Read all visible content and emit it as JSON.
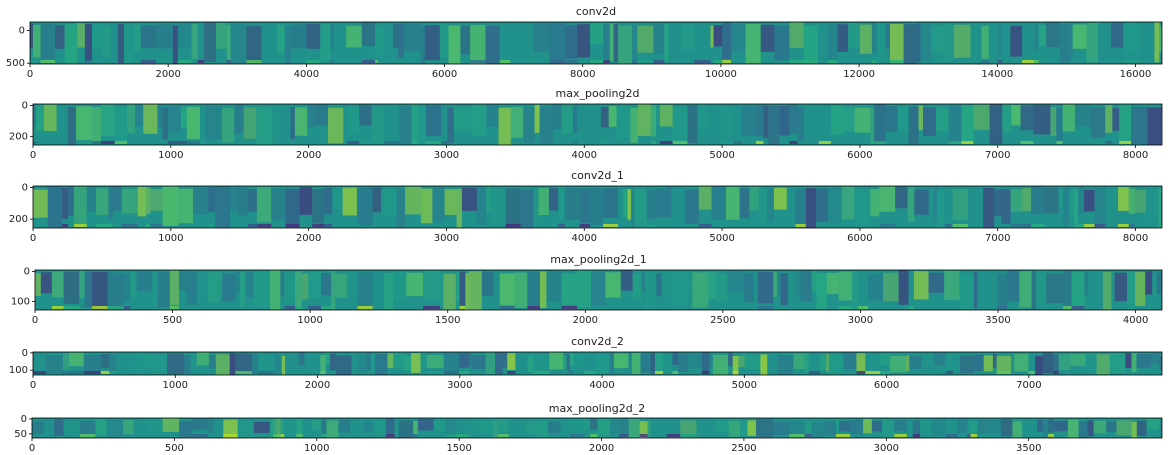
{
  "chart_data": [
    {
      "type": "image",
      "title": "conv2d",
      "xlim": [
        0,
        16384
      ],
      "ylim": [
        512,
        -128
      ],
      "xticks": [
        0,
        2000,
        4000,
        6000,
        8000,
        10000,
        12000,
        14000,
        16000
      ],
      "yticks": [
        0,
        500
      ]
    },
    {
      "type": "image",
      "title": "max_pooling2d",
      "xlim": [
        0,
        8192
      ],
      "ylim": [
        256,
        -10
      ],
      "xticks": [
        0,
        1000,
        2000,
        3000,
        4000,
        5000,
        6000,
        7000,
        8000
      ],
      "yticks": [
        0,
        200
      ]
    },
    {
      "type": "image",
      "title": "conv2d_1",
      "xlim": [
        0,
        8192
      ],
      "ylim": [
        256,
        -10
      ],
      "xticks": [
        0,
        1000,
        2000,
        3000,
        4000,
        5000,
        6000,
        7000,
        8000
      ],
      "yticks": [
        0,
        200
      ]
    },
    {
      "type": "image",
      "title": "max_pooling2d_1",
      "xlim": [
        0,
        4096
      ],
      "ylim": [
        128,
        -5
      ],
      "xticks": [
        0,
        500,
        1000,
        1500,
        2000,
        2500,
        3000,
        3500,
        4000
      ],
      "yticks": [
        0,
        100
      ]
    },
    {
      "type": "image",
      "title": "conv2d_2",
      "xlim": [
        0,
        7936
      ],
      "ylim": [
        128,
        -5
      ],
      "xticks": [
        0,
        1000,
        2000,
        3000,
        4000,
        5000,
        6000,
        7000
      ],
      "yticks": [
        0,
        100
      ]
    },
    {
      "type": "image",
      "title": "max_pooling2d_2",
      "xlim": [
        0,
        3968
      ],
      "ylim": [
        64,
        -3
      ],
      "xticks": [
        0,
        500,
        1000,
        1500,
        2000,
        2500,
        3000,
        3500
      ],
      "yticks": [
        0,
        50
      ]
    }
  ]
}
